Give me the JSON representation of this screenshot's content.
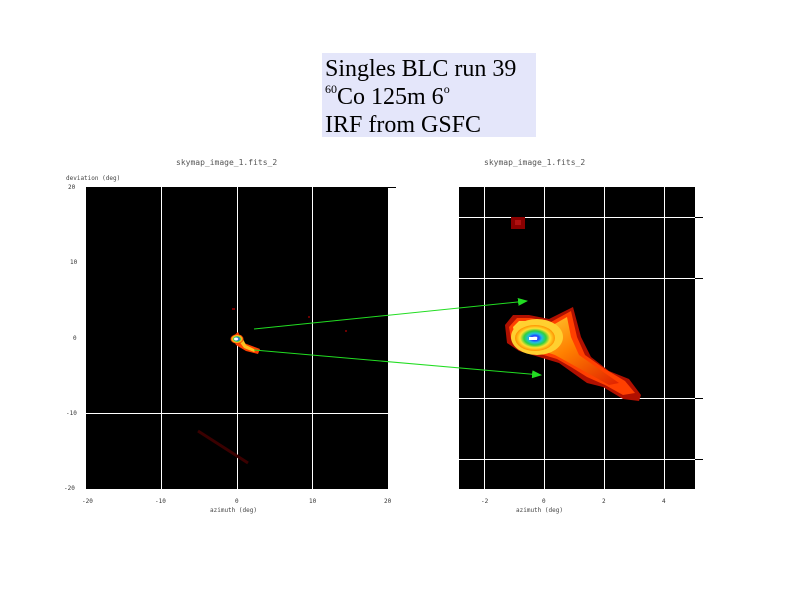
{
  "title_box": {
    "line1": "Singles   BLC run 39",
    "line2_sup": "60",
    "line2": "Co 125m   6",
    "line2_deg": "o",
    "line3": "IRF from GSFC"
  },
  "left_plot": {
    "title": "skymap_image_1.fits_2",
    "ylabel": "deviation (deg)",
    "xlabel": "azimuth (deg)",
    "y_ticks": [
      "20",
      "10",
      "0",
      "-10",
      "-20"
    ],
    "x_ticks": [
      "-20",
      "-10",
      "0",
      "10",
      "20"
    ]
  },
  "right_plot": {
    "title": "skymap_image_1.fits_2",
    "xlabel": "azimuth (deg)",
    "x_ticks": [
      "-2",
      "0",
      "2",
      "4"
    ]
  },
  "colors": {
    "annotation_arrow": "#22dd22",
    "panel_background": "#000000",
    "grid": "#ffffff",
    "title_box_bg": "#e4e6fa"
  }
}
